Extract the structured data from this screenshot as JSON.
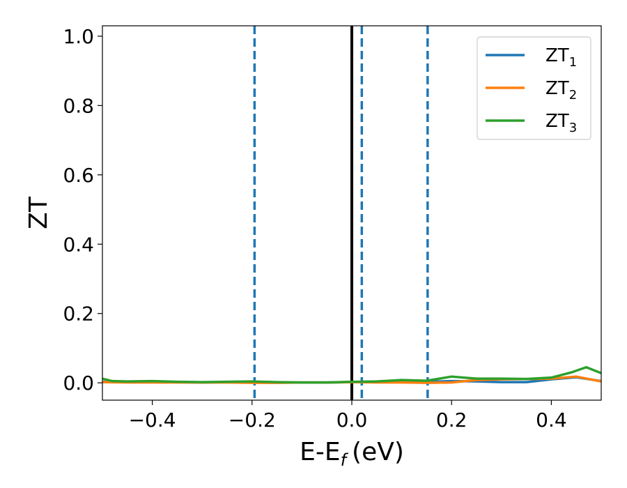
{
  "chart_data": {
    "type": "line",
    "xlabel": "E-E",
    "xlabel_sub": "f",
    "xlabel_unit": "(eV)",
    "ylabel": "ZT",
    "xlim": [
      -0.5,
      0.5
    ],
    "ylim": [
      -0.05,
      1.03
    ],
    "xticks": [
      -0.4,
      -0.2,
      0.0,
      0.2,
      0.4
    ],
    "xtick_labels": [
      "−0.4",
      "−0.2",
      "0.0",
      "0.2",
      "0.4"
    ],
    "yticks": [
      0.0,
      0.2,
      0.4,
      0.6,
      0.8,
      1.0
    ],
    "ytick_labels": [
      "0.0",
      "0.2",
      "0.4",
      "0.6",
      "0.8",
      "1.0"
    ],
    "grid": false,
    "legend_position": "top-right",
    "vlines": [
      {
        "x": 0.0,
        "style": "solid",
        "color": "#000000"
      },
      {
        "x": -0.195,
        "style": "dashed",
        "color": "#1f77b4"
      },
      {
        "x": 0.02,
        "style": "dashed",
        "color": "#1f77b4"
      },
      {
        "x": 0.152,
        "style": "dashed",
        "color": "#1f77b4"
      }
    ],
    "series": [
      {
        "name": "ZT",
        "name_sub": "1",
        "color": "#1f77b4",
        "x": [
          -0.5,
          -0.45,
          -0.4,
          -0.35,
          -0.3,
          -0.25,
          -0.2,
          -0.15,
          -0.1,
          -0.05,
          0.0,
          0.05,
          0.1,
          0.15,
          0.2,
          0.25,
          0.3,
          0.35,
          0.4,
          0.45,
          0.5
        ],
        "y": [
          0.003,
          0.002,
          0.002,
          0.002,
          0.001,
          0.002,
          0.002,
          0.001,
          0.001,
          0.001,
          0.002,
          0.003,
          0.002,
          0.003,
          0.005,
          0.004,
          0.002,
          0.002,
          0.01,
          0.016,
          0.005
        ]
      },
      {
        "name": "ZT",
        "name_sub": "2",
        "color": "#ff7f0e",
        "x": [
          -0.5,
          -0.45,
          -0.4,
          -0.35,
          -0.3,
          -0.25,
          -0.2,
          -0.15,
          -0.1,
          -0.05,
          0.0,
          0.05,
          0.1,
          0.15,
          0.2,
          0.25,
          0.3,
          0.35,
          0.4,
          0.45,
          0.5
        ],
        "y": [
          0.002,
          0.001,
          0.001,
          0.001,
          0.001,
          0.001,
          0.0,
          0.0,
          0.001,
          0.001,
          0.002,
          0.001,
          0.001,
          0.0,
          0.001,
          0.008,
          0.01,
          0.011,
          0.012,
          0.018,
          0.004
        ]
      },
      {
        "name": "ZT",
        "name_sub": "3",
        "color": "#2ca02c",
        "x": [
          -0.5,
          -0.48,
          -0.45,
          -0.4,
          -0.35,
          -0.3,
          -0.25,
          -0.2,
          -0.15,
          -0.1,
          -0.05,
          0.0,
          0.05,
          0.1,
          0.15,
          0.2,
          0.25,
          0.3,
          0.35,
          0.4,
          0.44,
          0.47,
          0.5
        ],
        "y": [
          0.012,
          0.005,
          0.004,
          0.005,
          0.003,
          0.002,
          0.003,
          0.004,
          0.002,
          0.001,
          0.001,
          0.003,
          0.004,
          0.008,
          0.006,
          0.018,
          0.012,
          0.012,
          0.011,
          0.015,
          0.03,
          0.045,
          0.028
        ]
      }
    ]
  }
}
